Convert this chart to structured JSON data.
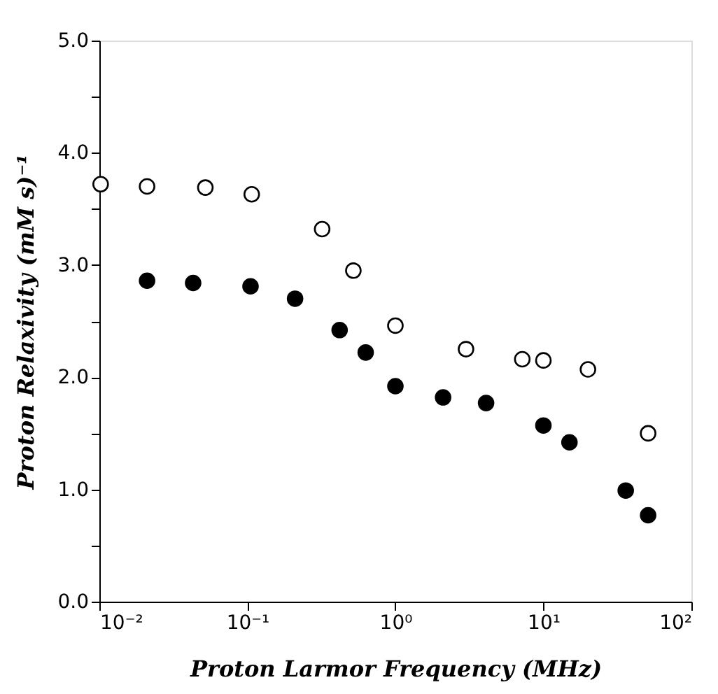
{
  "chart_data": {
    "type": "scatter",
    "xlabel": "Proton Larmor Frequency (MHz)",
    "ylabel": "Proton Relaxivity (mM s)⁻¹",
    "log": "x",
    "xlim": [
      0.01,
      100
    ],
    "ylim": [
      0,
      5
    ],
    "xticks": [
      {
        "value": 0.01,
        "label": "10⁻²"
      },
      {
        "value": 0.1,
        "label": "10⁻¹"
      },
      {
        "value": 1,
        "label": "10⁰"
      },
      {
        "value": 10,
        "label": "10¹"
      },
      {
        "value": 100,
        "label": "10²"
      }
    ],
    "yticks": [
      {
        "value": 0,
        "label": "0.0"
      },
      {
        "value": 0.5,
        "label": null
      },
      {
        "value": 1,
        "label": "1.0"
      },
      {
        "value": 1.5,
        "label": null
      },
      {
        "value": 2,
        "label": "2.0"
      },
      {
        "value": 2.5,
        "label": null
      },
      {
        "value": 3,
        "label": "3.0"
      },
      {
        "value": 3.5,
        "label": null
      },
      {
        "value": 4,
        "label": "4.0"
      },
      {
        "value": 4.5,
        "label": null
      },
      {
        "value": 5,
        "label": "5.0"
      }
    ],
    "grid": false,
    "marker": "circle",
    "series": [
      {
        "color": "#ffffff",
        "x": [
          0.0102,
          0.021,
          0.052,
          0.107,
          0.32,
          0.52,
          1.0,
          3.0,
          7.2,
          10,
          20,
          51
        ],
        "values": [
          3.72,
          3.7,
          3.69,
          3.63,
          3.32,
          2.95,
          2.46,
          2.25,
          2.16,
          2.15,
          2.07,
          1.5
        ]
      },
      {
        "color": "#000000",
        "x": [
          0.021,
          0.043,
          0.105,
          0.21,
          0.42,
          0.63,
          1.0,
          2.1,
          4.1,
          10,
          15,
          36,
          51
        ],
        "values": [
          2.86,
          2.84,
          2.81,
          2.7,
          2.42,
          2.22,
          1.92,
          1.82,
          1.77,
          1.57,
          1.42,
          0.99,
          0.77
        ]
      }
    ]
  }
}
